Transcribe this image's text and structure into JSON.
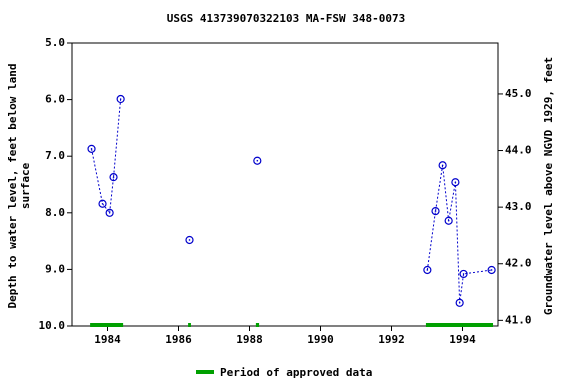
{
  "chart_data": {
    "type": "line",
    "title": "USGS 413739070322103 MA-FSW  348-0073",
    "y_label_lines": [
      "Depth to water level, feet below land",
      "surface"
    ],
    "y2_label": "Groundwater level above NGVD 1929, feet",
    "xlim": [
      1983,
      1995
    ],
    "xticks": [
      1984,
      1986,
      1988,
      1990,
      1992,
      1994
    ],
    "ylim": [
      5,
      10
    ],
    "y_inverted": true,
    "yticks": [
      {
        "value": 5,
        "label": "5.0"
      },
      {
        "value": 6,
        "label": "6.0"
      },
      {
        "value": 7,
        "label": "7.0"
      },
      {
        "value": 8,
        "label": "8.0"
      },
      {
        "value": 9,
        "label": "9.0"
      },
      {
        "value": 10,
        "label": "10.0"
      }
    ],
    "y2lim": [
      40.9,
      45.9
    ],
    "y2ticks": [
      {
        "value": 41,
        "label": "41.0"
      },
      {
        "value": 42,
        "label": "42.0"
      },
      {
        "value": 43,
        "label": "43.0"
      },
      {
        "value": 44,
        "label": "44.0"
      },
      {
        "value": 45,
        "label": "45.0"
      }
    ],
    "series": [
      {
        "color": "#0000cc",
        "x": [
          1983.55,
          1983.86,
          1984.06,
          1984.17,
          1984.37,
          null,
          1986.31,
          null,
          1988.22,
          null,
          1993.01,
          1993.24,
          1993.44,
          1993.61,
          1993.8,
          1993.92,
          1994.03,
          1994.82
        ],
        "values": [
          6.87,
          7.84,
          8.0,
          7.37,
          5.99,
          null,
          8.48,
          null,
          7.08,
          null,
          9.01,
          7.97,
          7.16,
          8.14,
          7.46,
          9.59,
          9.08,
          9.01
        ]
      }
    ],
    "approved_periods": [
      [
        1983.51,
        1984.44
      ],
      [
        1986.27,
        1986.35
      ],
      [
        1988.18,
        1988.27
      ],
      [
        1992.97,
        1994.86
      ]
    ],
    "approved_color": "#00a000",
    "legend": "Period of approved data"
  }
}
